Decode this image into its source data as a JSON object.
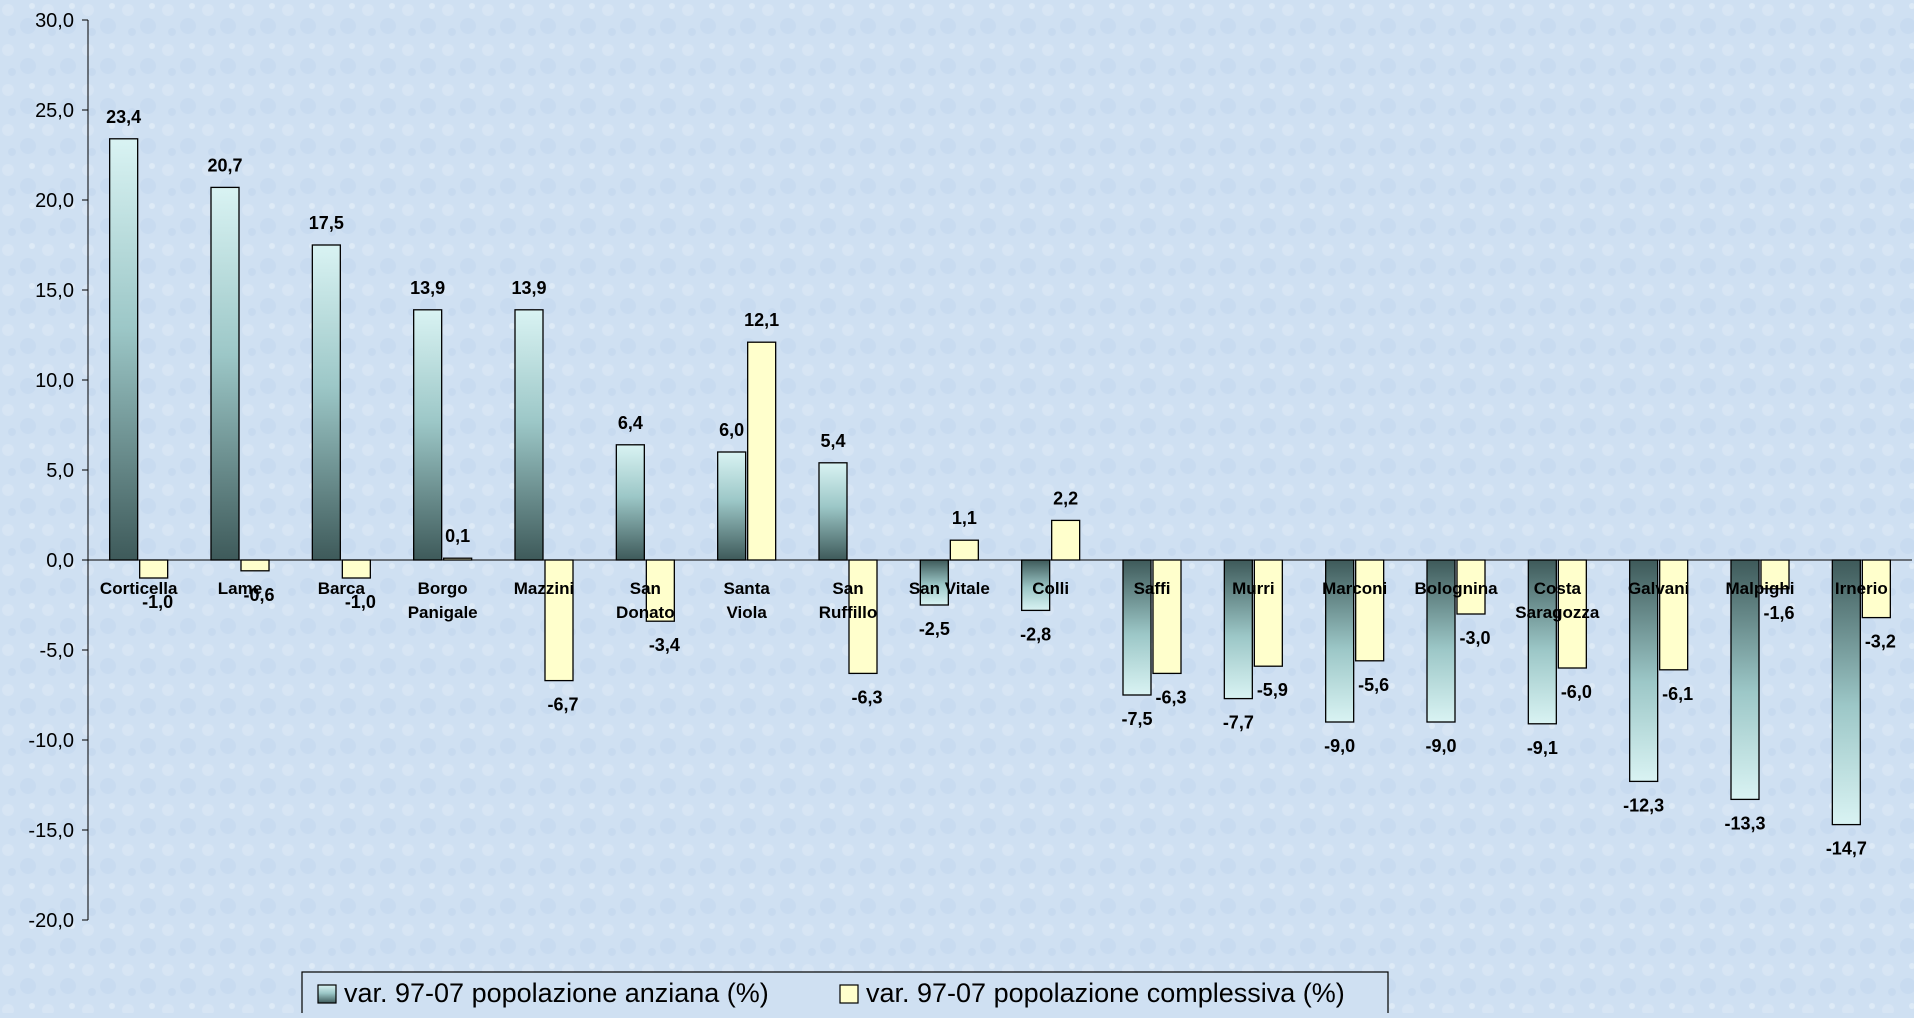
{
  "chart_data": {
    "type": "bar",
    "title": "",
    "xlabel": "",
    "ylabel": "",
    "ylim": [
      -20,
      30
    ],
    "yticks": [
      30,
      25,
      20,
      15,
      10,
      5,
      0,
      -5,
      -10,
      -15,
      -20
    ],
    "ytick_labels": [
      "30,0",
      "25,0",
      "20,0",
      "15,0",
      "10,0",
      "5,0",
      "0,0",
      "-5,0",
      "-10,0",
      "-15,0",
      "-20,0"
    ],
    "grid": false,
    "legend_position": "bottom",
    "categories": [
      [
        "Corticella"
      ],
      [
        "Lame"
      ],
      [
        "Barca"
      ],
      [
        "Borgo",
        "Panigale"
      ],
      [
        "Mazzini"
      ],
      [
        "San",
        "Donato"
      ],
      [
        "Santa",
        "Viola"
      ],
      [
        "San",
        "Ruffillo"
      ],
      [
        "San Vitale"
      ],
      [
        "Colli"
      ],
      [
        "Saffi"
      ],
      [
        "Murri"
      ],
      [
        "Marconi"
      ],
      [
        "Bolognina"
      ],
      [
        "Costa",
        "Saragozza"
      ],
      [
        "Galvani"
      ],
      [
        "Malpighi"
      ],
      [
        "Irnerio"
      ]
    ],
    "series": [
      {
        "name": "var. 97-07 popolazione anziana (%)",
        "color": "#5f8a8a",
        "values": [
          23.4,
          20.7,
          17.5,
          13.9,
          13.9,
          6.4,
          6.0,
          5.4,
          -2.5,
          -2.8,
          -7.5,
          -7.7,
          -9.0,
          -9.0,
          -9.1,
          -12.3,
          -13.3,
          -14.7
        ],
        "labels": [
          "23,4",
          "20,7",
          "17,5",
          "13,9",
          "13,9",
          "6,4",
          "6,0",
          "5,4",
          "-2,5",
          "-2,8",
          "-7,5",
          "-7,7",
          "-9,0",
          "-9,0",
          "-9,1",
          "-12,3",
          "-13,3",
          "-14,7"
        ]
      },
      {
        "name": "var. 97-07 popolazione complessiva (%)",
        "color": "#ffffcc",
        "values": [
          -1.0,
          -0.6,
          -1.0,
          0.1,
          -6.7,
          -3.4,
          12.1,
          -6.3,
          1.1,
          2.2,
          -6.3,
          -5.9,
          -5.6,
          -3.0,
          -6.0,
          -6.1,
          -1.6,
          -3.2
        ],
        "labels": [
          "-1,0",
          "-0,6",
          "-1,0",
          "0,1",
          "-6,7",
          "-3,4",
          "12,1",
          "-6,3",
          "1,1",
          "2,2",
          "-6,3",
          "-5,9",
          "-5,6",
          "-3,0",
          "-6,0",
          "-6,1",
          "-1,6",
          "-3,2"
        ]
      }
    ]
  }
}
